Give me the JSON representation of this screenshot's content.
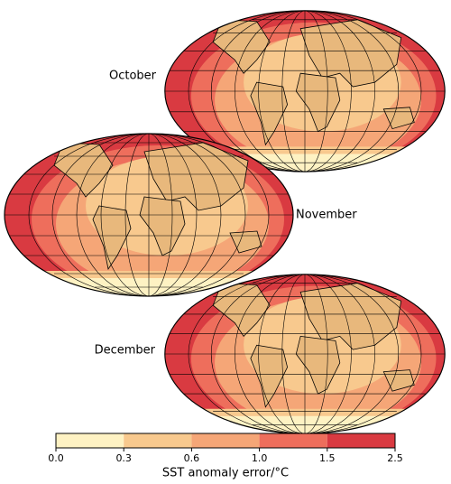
{
  "panels": [
    {
      "label": "October"
    },
    {
      "label": "November"
    },
    {
      "label": "December"
    }
  ],
  "colorbar": {
    "label": "SST anomaly error/°C",
    "ticks": [
      {
        "value": 0,
        "label": "0.0"
      },
      0.3,
      0.6,
      {
        "value": 1,
        "label": "1.0"
      },
      1.5,
      2.5
    ],
    "colors": [
      "#fef2c3",
      "#f8c98e",
      "#f5a677",
      "#ee6e5c",
      "#d93a41"
    ]
  }
}
